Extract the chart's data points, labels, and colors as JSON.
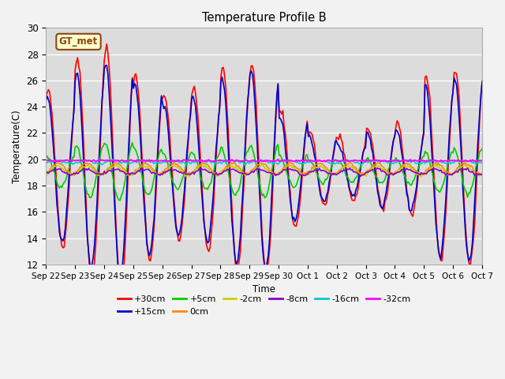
{
  "title": "Temperature Profile B",
  "xlabel": "Time",
  "ylabel": "Temperature(C)",
  "ylim": [
    12,
    30
  ],
  "background_color": "#dcdcdc",
  "series": [
    {
      "label": "+30cm",
      "color": "#ff0000",
      "lw": 1.2
    },
    {
      "label": "+15cm",
      "color": "#0000cc",
      "lw": 1.2
    },
    {
      "label": "+5cm",
      "color": "#00cc00",
      "lw": 1.2
    },
    {
      "label": "0cm",
      "color": "#ff8800",
      "lw": 1.2
    },
    {
      "label": "-2cm",
      "color": "#cccc00",
      "lw": 1.2
    },
    {
      "label": "-8cm",
      "color": "#8800cc",
      "lw": 1.2
    },
    {
      "label": "-16cm",
      "color": "#00cccc",
      "lw": 1.2
    },
    {
      "label": "-32cm",
      "color": "#ff00ff",
      "lw": 1.5
    }
  ],
  "xtick_labels": [
    "Sep 22",
    "Sep 23",
    "Sep 24",
    "Sep 25",
    "Sep 26",
    "Sep 27",
    "Sep 28",
    "Sep 29",
    "Sep 30",
    "Oct 1",
    "Oct 2",
    "Oct 3",
    "Oct 4",
    "Oct 5",
    "Oct 6",
    "Oct 7"
  ],
  "annotation_text": "GT_met",
  "yticks": [
    12,
    14,
    16,
    18,
    20,
    22,
    24,
    26,
    28,
    30
  ]
}
